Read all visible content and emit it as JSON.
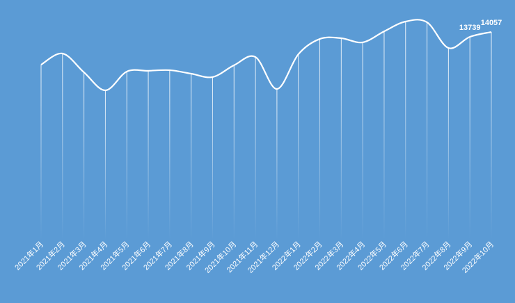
{
  "chart_data": {
    "type": "line",
    "categories": [
      "2021年1月",
      "2021年2月",
      "2021年3月",
      "2021年4月",
      "2021年5月",
      "2021年6月",
      "2021年7月",
      "2021年8月",
      "2021年9月",
      "2021年10月",
      "2021年11月",
      "2021年12月",
      "2022年1月",
      "2022年2月",
      "2022年3月",
      "2022年4月",
      "2022年5月",
      "2022年6月",
      "2022年7月",
      "2022年8月",
      "2022年9月",
      "2022年10月"
    ],
    "values": [
      11920,
      12650,
      11420,
      10240,
      11470,
      11520,
      11560,
      11330,
      11110,
      11880,
      12420,
      10330,
      12600,
      13600,
      13650,
      13380,
      14100,
      14740,
      14690,
      13010,
      13739,
      14057
    ],
    "value_labels": [
      null,
      null,
      null,
      null,
      null,
      null,
      null,
      null,
      null,
      null,
      null,
      null,
      null,
      null,
      null,
      null,
      null,
      null,
      null,
      null,
      "13739",
      "14057"
    ],
    "color": "#ffffff",
    "background": "#5b9bd5"
  }
}
